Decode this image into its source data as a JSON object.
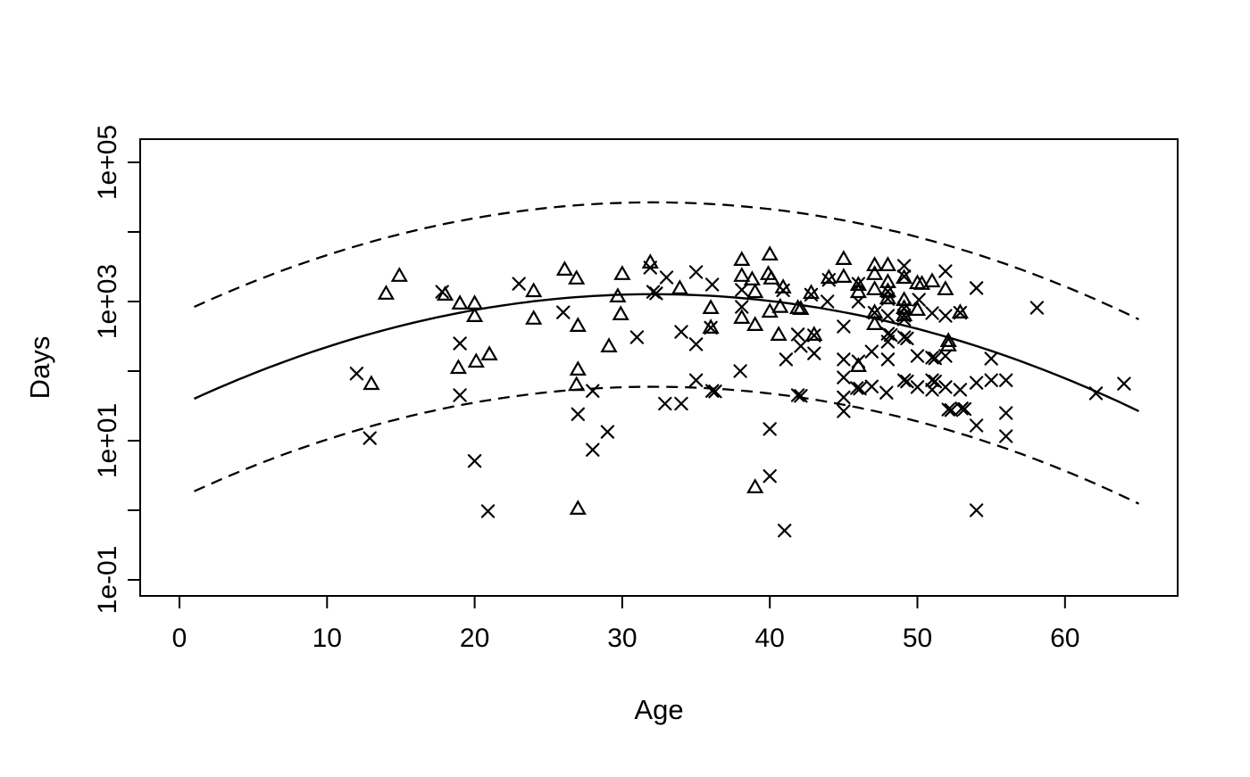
{
  "figure": {
    "background": "#ffffff",
    "foreground": "#000000"
  },
  "chart_data": {
    "type": "scatter",
    "title": "",
    "xlabel": "Age",
    "ylabel": "Days",
    "y_scale": "log10",
    "grid": false,
    "legend": "none",
    "xlim": [
      -2.5,
      67.5
    ],
    "ylim_log10": [
      -1.23,
      5.33
    ],
    "x_ticks": [
      0,
      10,
      20,
      30,
      40,
      50,
      60
    ],
    "y_labeled_ticks": [
      {
        "text": "1e-01",
        "log10": -1
      },
      {
        "text": "1e+01",
        "log10": 1
      },
      {
        "text": "1e+03",
        "log10": 3
      },
      {
        "text": "1e+05",
        "log10": 5
      }
    ],
    "y_minor_tick_log10": [
      0,
      2,
      4
    ],
    "fit_curve": {
      "style": "solid",
      "model": "log10(days) = b0 + b1*age + b2*age^2",
      "b0": 1.505,
      "b1": 0.0997,
      "b2": -0.001553,
      "age_range": [
        1,
        65
      ]
    },
    "bands": {
      "style": "dashed",
      "upper_offset_decades": 1.32,
      "lower_offset_decades": -1.33,
      "age_range": [
        1,
        65
      ]
    },
    "series": [
      {
        "name": "triangle-points",
        "marker": "open-triangle",
        "points": [
          [
            14.9,
            2290
          ],
          [
            14,
            1270
          ],
          [
            18,
            1230
          ],
          [
            19,
            915
          ],
          [
            20,
            915
          ],
          [
            20,
            605
          ],
          [
            24,
            1380
          ],
          [
            26.1,
            2810
          ],
          [
            26.9,
            2100
          ],
          [
            24,
            555
          ],
          [
            27,
            438
          ],
          [
            29.1,
            222
          ],
          [
            27,
            103
          ],
          [
            26.9,
            62
          ],
          [
            13,
            64
          ],
          [
            21,
            170
          ],
          [
            20.1,
            134
          ],
          [
            18.9,
            109
          ],
          [
            27,
            1.03
          ],
          [
            39,
            2.1
          ],
          [
            30,
            2430
          ],
          [
            31.9,
            3560
          ],
          [
            33.9,
            1510
          ],
          [
            29.7,
            1160
          ],
          [
            29.9,
            643
          ],
          [
            36,
            789
          ],
          [
            36,
            412
          ],
          [
            38.1,
            3890
          ],
          [
            38.1,
            2290
          ],
          [
            40,
            4640
          ],
          [
            39.9,
            2430
          ],
          [
            40.1,
            2100
          ],
          [
            38.8,
            2030
          ],
          [
            39,
            1340
          ],
          [
            38.1,
            570
          ],
          [
            39,
            451
          ],
          [
            40,
            700
          ],
          [
            40.9,
            1560
          ],
          [
            40.7,
            820
          ],
          [
            40.6,
            326
          ],
          [
            42.1,
            767
          ],
          [
            42.8,
            1300
          ],
          [
            41.9,
            789
          ],
          [
            44,
            2150
          ],
          [
            45,
            4010
          ],
          [
            45,
            2220
          ],
          [
            47.1,
            3260
          ],
          [
            47.1,
            2430
          ],
          [
            48,
            3260
          ],
          [
            46,
            1700
          ],
          [
            46,
            1340
          ],
          [
            47.1,
            1470
          ],
          [
            48,
            1860
          ],
          [
            48,
            1380
          ],
          [
            48,
            1090
          ],
          [
            50,
            1800
          ],
          [
            50.3,
            1760
          ],
          [
            51,
            1910
          ],
          [
            51.9,
            1470
          ],
          [
            49.1,
            1030
          ],
          [
            50,
            745
          ],
          [
            47.1,
            681
          ],
          [
            49.1,
            789
          ],
          [
            49.1,
            624
          ],
          [
            52.9,
            681
          ],
          [
            47.1,
            464
          ],
          [
            52.1,
            265
          ],
          [
            52.1,
            229
          ],
          [
            46,
            116
          ],
          [
            43,
            326
          ],
          [
            49.1,
            2150
          ]
        ]
      },
      {
        "name": "cross-points",
        "marker": "x",
        "points": [
          [
            17.8,
            1380
          ],
          [
            23,
            1800
          ],
          [
            26,
            700
          ],
          [
            19,
            250
          ],
          [
            12,
            92
          ],
          [
            19,
            45
          ],
          [
            28,
            52
          ],
          [
            27,
            24
          ],
          [
            29,
            13.4
          ],
          [
            12.9,
            10.9
          ],
          [
            20,
            5.1
          ],
          [
            20.9,
            0.97
          ],
          [
            28,
            7.4
          ],
          [
            31.9,
            3070
          ],
          [
            33,
            2220
          ],
          [
            32.1,
            1380
          ],
          [
            32.3,
            1310
          ],
          [
            35,
            2650
          ],
          [
            36.1,
            1750
          ],
          [
            31,
            307
          ],
          [
            34,
            367
          ],
          [
            35,
            243
          ],
          [
            38.1,
            1470
          ],
          [
            38.1,
            837
          ],
          [
            41.9,
            336
          ],
          [
            42.1,
            229
          ],
          [
            41.1,
            147
          ],
          [
            43,
            180
          ],
          [
            43,
            326
          ],
          [
            43.9,
            1000
          ],
          [
            45,
            438
          ],
          [
            45,
            147
          ],
          [
            45,
            81
          ],
          [
            46,
            138
          ],
          [
            46,
            1800
          ],
          [
            46,
            1000
          ],
          [
            48,
            624
          ],
          [
            48,
            345
          ],
          [
            48.2,
            330
          ],
          [
            48,
            265
          ],
          [
            48,
            147
          ],
          [
            49.1,
            3260
          ],
          [
            49.1,
            2290
          ],
          [
            49.1,
            555
          ],
          [
            49.1,
            307
          ],
          [
            49.3,
            295
          ],
          [
            49.1,
            74
          ],
          [
            49.3,
            71
          ],
          [
            50,
            59
          ],
          [
            51,
            74
          ],
          [
            51.2,
            71
          ],
          [
            51,
            54
          ],
          [
            51.9,
            59
          ],
          [
            52.9,
            54
          ],
          [
            54,
            68
          ],
          [
            55,
            74
          ],
          [
            56,
            74
          ],
          [
            56,
            25
          ],
          [
            52.1,
            28
          ],
          [
            52.3,
            27.5
          ],
          [
            53,
            29
          ],
          [
            53.2,
            28.5
          ],
          [
            54,
            16.5
          ],
          [
            56,
            11.6
          ],
          [
            54,
            1.0
          ],
          [
            58.1,
            813
          ],
          [
            62.1,
            48
          ],
          [
            64,
            66
          ],
          [
            35,
            74
          ],
          [
            36.1,
            52
          ],
          [
            36.3,
            51
          ],
          [
            32.9,
            34
          ],
          [
            34,
            34
          ],
          [
            38,
            100
          ],
          [
            41.9,
            45
          ],
          [
            42.1,
            44
          ],
          [
            45,
            42
          ],
          [
            45,
            26.5
          ],
          [
            45.9,
            57
          ],
          [
            46.1,
            56
          ],
          [
            46.9,
            60
          ],
          [
            47.9,
            49
          ],
          [
            40,
            14.7
          ],
          [
            40,
            3.1
          ],
          [
            41,
            0.51
          ],
          [
            50,
            165
          ],
          [
            51,
            156
          ],
          [
            51.2,
            153
          ],
          [
            51.9,
            165
          ],
          [
            51,
            681
          ],
          [
            51.9,
            624
          ],
          [
            50.1,
            1060
          ],
          [
            51.9,
            2730
          ],
          [
            54,
            1560
          ],
          [
            46.9,
            191
          ],
          [
            55,
            151
          ],
          [
            36,
            420
          ],
          [
            40.9,
            1450
          ],
          [
            42.8,
            1250
          ],
          [
            44,
            2050
          ],
          [
            48,
            1400
          ],
          [
            48,
            1090
          ],
          [
            47.1,
            690
          ],
          [
            49.1,
            800
          ],
          [
            49.1,
            630
          ],
          [
            52.9,
            690
          ]
        ]
      }
    ]
  }
}
